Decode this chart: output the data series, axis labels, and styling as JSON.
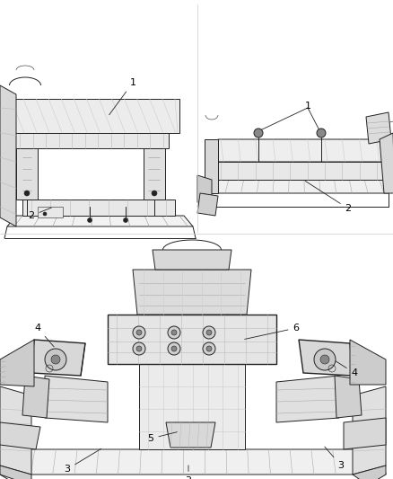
{
  "bg_color": "#ffffff",
  "line_color": "#555555",
  "dark_line": "#222222",
  "fig_width": 4.38,
  "fig_height": 5.33,
  "dpi": 100,
  "label_font_size": 8,
  "border_color": "#aaaaaa"
}
